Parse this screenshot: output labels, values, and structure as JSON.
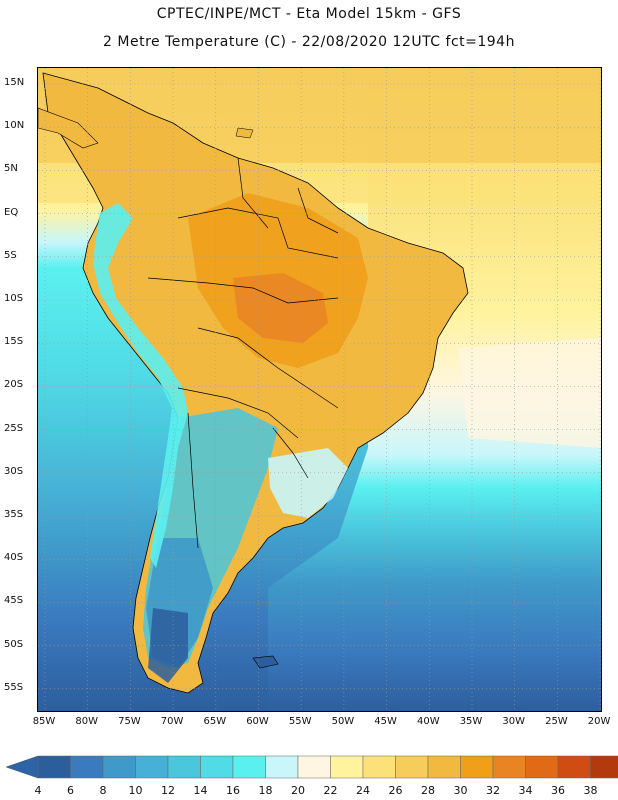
{
  "header": {
    "line1": "CPTEC/INPE/MCT -  Eta Model 15km - GFS",
    "line2": "2 Metre Temperature (C) - 22/08/2020 12UTC fct=194h"
  },
  "map": {
    "latitude_labels": [
      "15N",
      "10N",
      "5N",
      "EQ",
      "5S",
      "10S",
      "15S",
      "20S",
      "25S",
      "30S",
      "35S",
      "40S",
      "45S",
      "50S",
      "55S"
    ],
    "longitude_labels": [
      "85W",
      "80W",
      "75W",
      "70W",
      "65W",
      "60W",
      "55W",
      "50W",
      "45W",
      "40W",
      "35W",
      "30W",
      "25W",
      "20W"
    ]
  },
  "legend": {
    "ticks": [
      "4",
      "6",
      "8",
      "10",
      "12",
      "14",
      "16",
      "18",
      "20",
      "22",
      "24",
      "26",
      "28",
      "30",
      "32",
      "34",
      "36",
      "38"
    ],
    "colors": [
      "#2c5e9e",
      "#3a7bbf",
      "#3f99c9",
      "#46b0d6",
      "#4ac6dd",
      "#50dbe6",
      "#5bf0f0",
      "#c8f6fb",
      "#fff6e1",
      "#fff39e",
      "#fbe178",
      "#f6cc5a",
      "#f1b93f",
      "#ef9f1a",
      "#e98424",
      "#e06a16",
      "#cf4d12",
      "#b23a0d"
    ],
    "under_color": "#2e64a6",
    "over_color": "#b83c0e"
  }
}
